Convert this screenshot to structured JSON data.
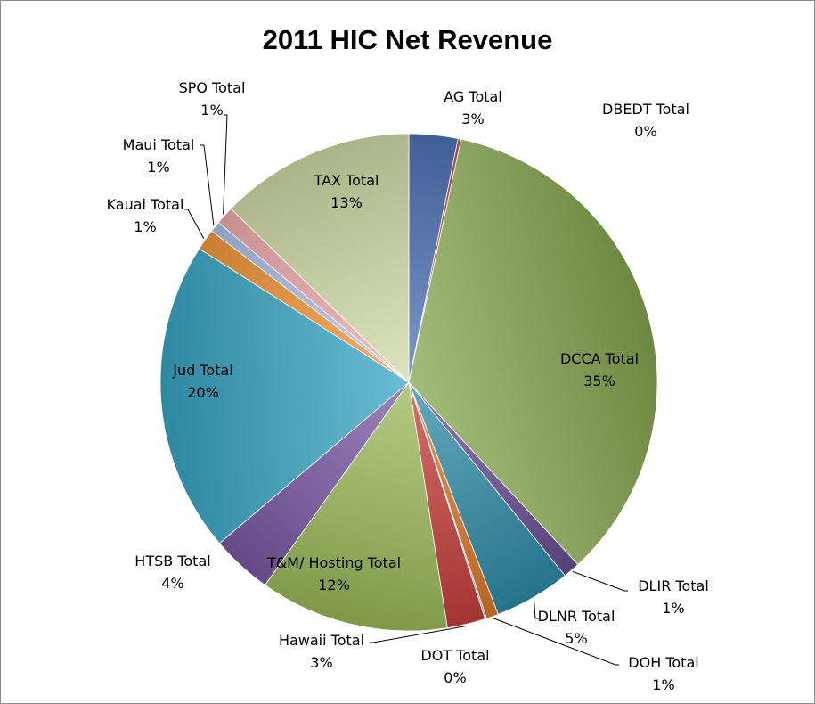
{
  "chart_data": {
    "type": "pie",
    "title": "2011 HIC Net Revenue",
    "slices": [
      {
        "label": "AG Total",
        "percent": "3%",
        "value": 3.2,
        "color": "#4f74b8"
      },
      {
        "label": "DBEDT Total",
        "percent": "0%",
        "value": 0.2,
        "color": "#c0504d"
      },
      {
        "label": "DCCA Total",
        "percent": "35%",
        "value": 35,
        "color": "#86a64f"
      },
      {
        "label": "DLIR Total",
        "percent": "1%",
        "value": 1.1,
        "color": "#6a4f95"
      },
      {
        "label": "DLNR Total",
        "percent": "5%",
        "value": 5,
        "color": "#2f8ea8"
      },
      {
        "label": "DOH Total",
        "percent": "1%",
        "value": 0.8,
        "color": "#e07a26"
      },
      {
        "label": "DOT Total",
        "percent": "0%",
        "value": 0.1,
        "color": "#8fa2cc"
      },
      {
        "label": "Hawaii Total",
        "percent": "3%",
        "value": 2.5,
        "color": "#c8403c"
      },
      {
        "label": "T&M/ Hosting Total",
        "percent": "12%",
        "value": 12.4,
        "color": "#9bbb59"
      },
      {
        "label": "HTSB Total",
        "percent": "4%",
        "value": 4,
        "color": "#7b5aa6"
      },
      {
        "label": "Jud Total",
        "percent": "20%",
        "value": 20.4,
        "color": "#37a6c4"
      },
      {
        "label": "Kauai Total",
        "percent": "1%",
        "value": 1.4,
        "color": "#f59a3a"
      },
      {
        "label": "Maui Total",
        "percent": "1%",
        "value": 0.7,
        "color": "#aec4ea"
      },
      {
        "label": "SPO Total",
        "percent": "1%",
        "value": 1.2,
        "color": "#f3aeb0"
      },
      {
        "label": "TAX Total",
        "percent": "13%",
        "value": 12.8,
        "color": "#d0dca6"
      }
    ]
  }
}
